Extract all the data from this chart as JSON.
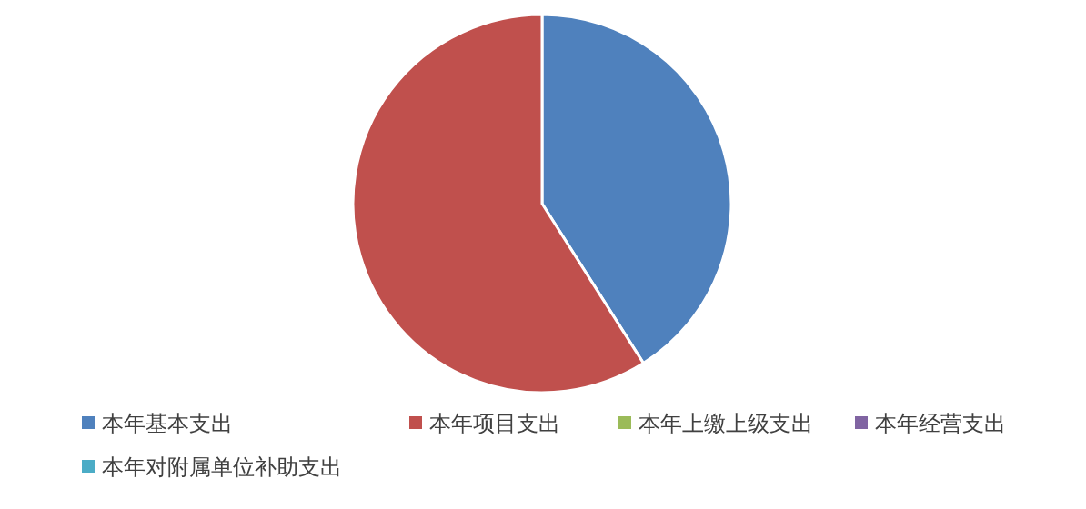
{
  "chart_data": {
    "type": "pie",
    "categories": [
      "本年基本支出",
      "本年项目支出",
      "本年上缴上级支出",
      "本年经营支出",
      "本年对附属单位补助支出"
    ],
    "values": [
      41,
      59,
      0,
      0,
      0
    ],
    "colors": [
      "#4f81bd",
      "#c0504d",
      "#9bbb59",
      "#8064a2",
      "#4bacc6"
    ],
    "legend": "bottom"
  }
}
